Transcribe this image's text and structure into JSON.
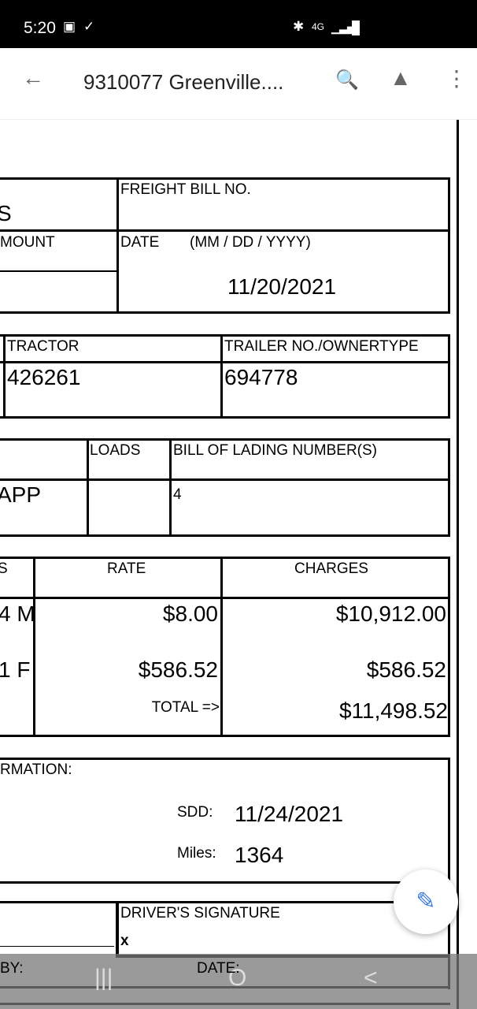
{
  "status_bar": {
    "time": "5:20",
    "network": "4G"
  },
  "app_bar": {
    "title": "9310077 Greenville....",
    "back_icon": "arrow-left-icon",
    "search_icon": "find-in-file-icon",
    "drive_icon": "add-to-drive-icon",
    "more_icon": "more-vert-icon"
  },
  "form": {
    "freight_bill_label": "FREIGHT BILL NO.",
    "left_partial_1": "S",
    "amount_partial": "MOUNT",
    "date_label": "DATE",
    "date_format": "(MM / DD / YYYY)",
    "date_value": "11/20/2021",
    "tractor_label": "TRACTOR",
    "tractor_value": "426261",
    "trailer_label": "TRAILER NO./OWNERTYPE",
    "trailer_value": "694778",
    "loads_label": "LOADS",
    "bol_label": "BILL OF LADING NUMBER(S)",
    "app_partial": "APP",
    "bol_partial": "4",
    "col_partial": "S",
    "rate_label": "RATE",
    "charges_label": "CHARGES",
    "rows": [
      {
        "unit": "4 M",
        "rate": "$8.00",
        "charge": "$10,912.00"
      },
      {
        "unit": "1 F",
        "rate": "$586.52",
        "charge": "$586.52"
      }
    ],
    "total_label": "TOTAL =>",
    "total_value": "$11,498.52",
    "info_partial": "RMATION:",
    "sdd_label": "SDD:",
    "sdd_value": "11/24/2021",
    "miles_label": "Miles:",
    "miles_value": "1364",
    "driver_sig_label": "DRIVER'S SIGNATURE",
    "sig_x": "x",
    "by_label": "BY:",
    "date2_label": "DATE:"
  },
  "fab": {
    "icon": "pencil-icon"
  },
  "nav": {
    "recents": "|||",
    "home": "O",
    "back": "<"
  }
}
